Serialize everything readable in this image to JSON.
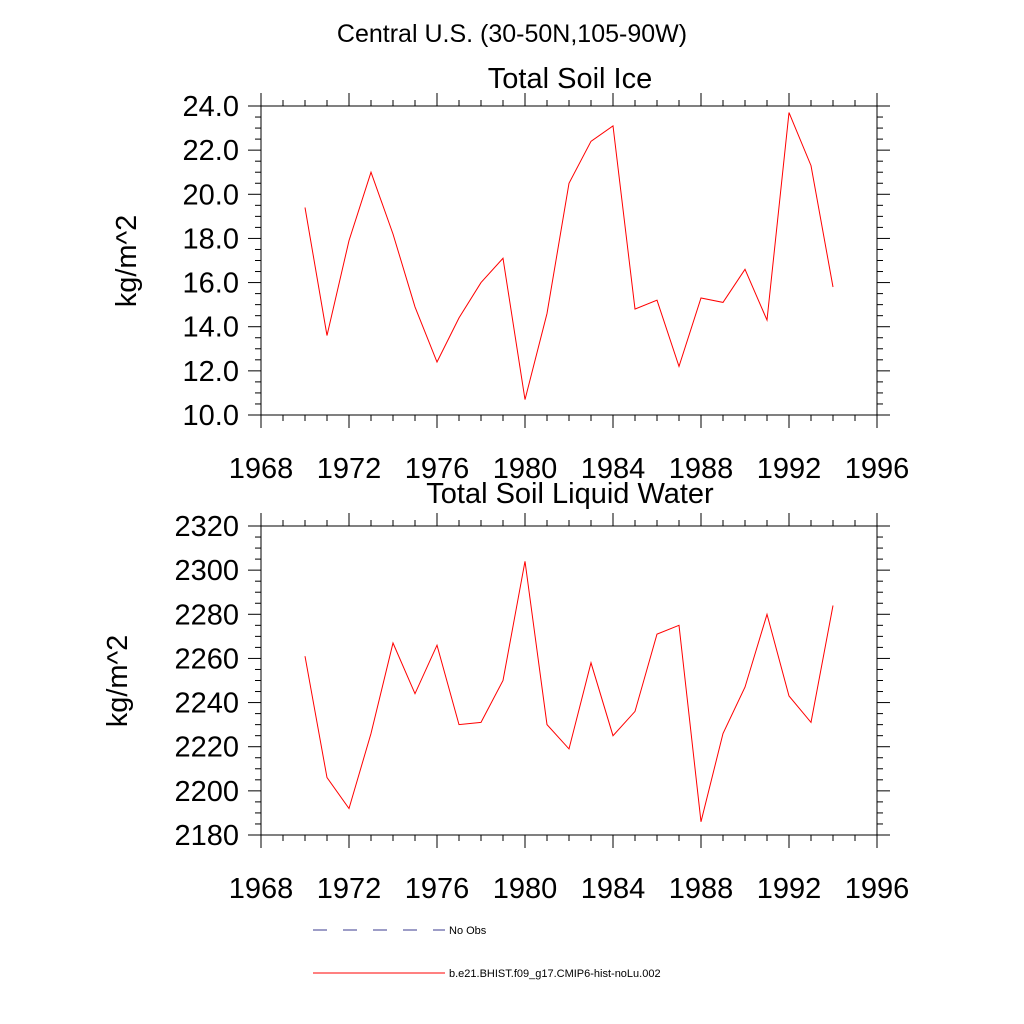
{
  "figure": {
    "suptitle": "Central U.S. (30-50N,105-90W)"
  },
  "chart_data": [
    {
      "type": "line",
      "title": "Total Soil Ice",
      "xlabel": "",
      "ylabel": "kg/m^2",
      "xlim": [
        1968,
        1996
      ],
      "ylim": [
        10,
        24
      ],
      "x_ticks": [
        1968,
        1972,
        1976,
        1980,
        1984,
        1988,
        1992,
        1996
      ],
      "x_tick_labels": [
        "1968",
        "1972",
        "1976",
        "1980",
        "1984",
        "1988",
        "1992",
        "1996"
      ],
      "y_ticks": [
        10,
        12,
        14,
        16,
        18,
        20,
        22,
        24
      ],
      "y_tick_labels": [
        "10.0",
        "12.0",
        "14.0",
        "16.0",
        "18.0",
        "20.0",
        "22.0",
        "24.0"
      ],
      "grid": false,
      "series": [
        {
          "name": "b.e21.BHIST.f09_g17.CMIP6-hist-noLu.002",
          "color": "#ff0000",
          "x": [
            1970,
            1971,
            1972,
            1973,
            1974,
            1975,
            1976,
            1977,
            1978,
            1979,
            1980,
            1981,
            1982,
            1983,
            1984,
            1985,
            1986,
            1987,
            1988,
            1989,
            1990,
            1991,
            1992,
            1993,
            1994
          ],
          "y": [
            19.4,
            13.6,
            17.9,
            21.0,
            18.2,
            14.9,
            12.4,
            14.4,
            16.0,
            17.1,
            10.7,
            14.6,
            20.5,
            22.4,
            23.1,
            14.8,
            15.2,
            12.2,
            15.3,
            15.1,
            16.6,
            14.3,
            23.7,
            21.3,
            15.8
          ]
        }
      ]
    },
    {
      "type": "line",
      "title": "Total Soil Liquid Water",
      "xlabel": "",
      "ylabel": "kg/m^2",
      "xlim": [
        1968,
        1996
      ],
      "ylim": [
        2180,
        2320
      ],
      "x_ticks": [
        1968,
        1972,
        1976,
        1980,
        1984,
        1988,
        1992,
        1996
      ],
      "x_tick_labels": [
        "1968",
        "1972",
        "1976",
        "1980",
        "1984",
        "1988",
        "1992",
        "1996"
      ],
      "y_ticks": [
        2180,
        2200,
        2220,
        2240,
        2260,
        2280,
        2300,
        2320
      ],
      "y_tick_labels": [
        "2180",
        "2200",
        "2220",
        "2240",
        "2260",
        "2280",
        "2300",
        "2320"
      ],
      "grid": false,
      "series": [
        {
          "name": "b.e21.BHIST.f09_g17.CMIP6-hist-noLu.002",
          "color": "#ff0000",
          "x": [
            1970,
            1971,
            1972,
            1973,
            1974,
            1975,
            1976,
            1977,
            1978,
            1979,
            1980,
            1981,
            1982,
            1983,
            1984,
            1985,
            1986,
            1987,
            1988,
            1989,
            1990,
            1991,
            1992,
            1993,
            1994
          ],
          "y": [
            2261,
            2206,
            2192,
            2226,
            2267,
            2244,
            2266,
            2230,
            2231,
            2250,
            2304,
            2230,
            2219,
            2258,
            2225,
            2236,
            2271,
            2275,
            2186,
            2226,
            2247,
            2280,
            2243,
            2231,
            2284
          ]
        }
      ]
    }
  ],
  "legend": {
    "placement": "bottom",
    "entries": [
      {
        "label": "No Obs",
        "color": "#3b3b8f",
        "style": "dashed"
      },
      {
        "label": "b.e21.BHIST.f09_g17.CMIP6-hist-noLu.002",
        "color": "#ff0000",
        "style": "solid"
      }
    ]
  }
}
